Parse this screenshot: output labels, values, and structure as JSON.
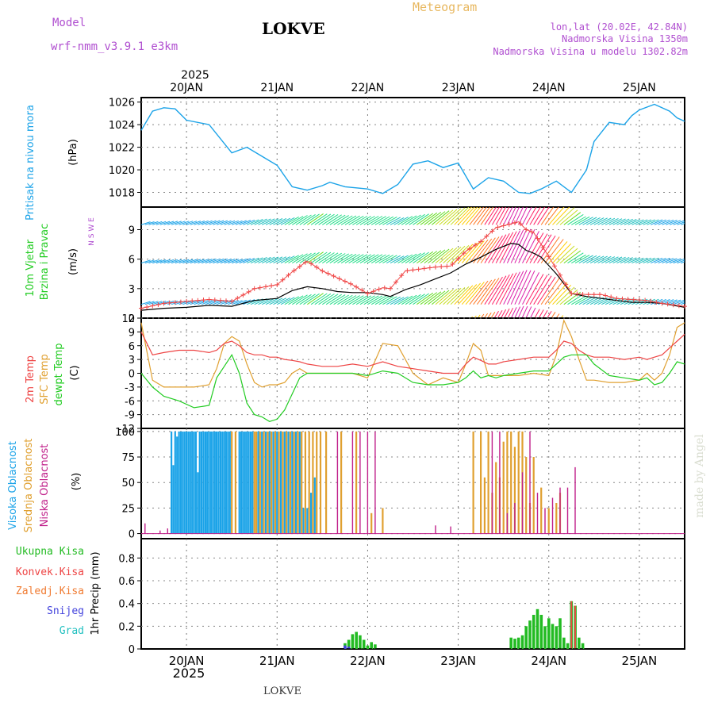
{
  "header": {
    "model_label": "Model",
    "model_name": "wrf-nmm_v3.9.1 e3km",
    "station": "LOKVE",
    "title": "Meteogram",
    "coords": "lon,lat (20.02E, 42.84N)",
    "altitude": "Nadmorska Visina 1350m",
    "model_altitude": "Nadmorska Visina u modelu 1302.82m",
    "footer_station": "LOKVE",
    "credit": "made by Angel"
  },
  "colors": {
    "pressure": "#1ba3e8",
    "wind_label": "#22cc22",
    "gust": "#f04848",
    "temp2m": "#ee4444",
    "sfc_temp": "#e0a030",
    "dewpt": "#22cc22",
    "cloud_high": "#1ba3e8",
    "cloud_mid": "#e0a030",
    "cloud_low": "#c0208a",
    "precip_total": "#22bb22",
    "precip_conv": "#ee4444",
    "precip_frozen": "#f07a30",
    "snow": "#4444dd",
    "graupel": "#22c0c0",
    "header_purple": "#b04fd0",
    "meteogram_orange": "#e8b860"
  },
  "time_axis": {
    "year": "2025",
    "days": [
      "20JAN",
      "21JAN",
      "22JAN",
      "23JAN",
      "24JAN",
      "25JAN"
    ],
    "hours_from_start": [
      0,
      144
    ],
    "note": "hour 0 = 19JAN 12h, day labels at midnight"
  },
  "chart_data": [
    {
      "type": "line",
      "title": "Pritisak na nivou mora",
      "ylabel": "(hPa)",
      "ylim": [
        1016.7,
        1026.4
      ],
      "yticks": [
        "1018",
        "1020",
        "1022",
        "1024",
        "1026"
      ],
      "x_hours": [
        0,
        3,
        6,
        9,
        12,
        18,
        24,
        28,
        32,
        36,
        40,
        44,
        48,
        50,
        54,
        60,
        64,
        68,
        72,
        76,
        80,
        84,
        88,
        92,
        96,
        100,
        103,
        106,
        110,
        114,
        118,
        120,
        124,
        128,
        130,
        132,
        136,
        140,
        142,
        144
      ],
      "series": [
        {
          "name": "MSLP",
          "values": [
            1023.5,
            1025.2,
            1025.5,
            1025.4,
            1024.4,
            1024.0,
            1021.5,
            1022.0,
            1021.2,
            1020.4,
            1018.5,
            1018.2,
            1018.6,
            1018.9,
            1018.5,
            1018.3,
            1017.9,
            1018.7,
            1020.5,
            1020.8,
            1020.2,
            1020.6,
            1018.3,
            1019.3,
            1019.0,
            1018.0,
            1017.9,
            1018.3,
            1019.0,
            1018.0,
            1020.0,
            1022.5,
            1024.2,
            1024.0,
            1024.8,
            1025.3,
            1025.8,
            1025.2,
            1024.6,
            1024.3
          ]
        }
      ]
    },
    {
      "type": "line",
      "title": "10m Vjetar Brzina i Pravac",
      "ylabel": "(m/s)",
      "ylim": [
        0,
        11.3
      ],
      "yticks": [
        "0",
        "3",
        "6",
        "9"
      ],
      "compass": "N S W E",
      "x_hours": [
        0,
        6,
        12,
        18,
        24,
        30,
        36,
        40,
        44,
        48,
        52,
        56,
        60,
        64,
        66,
        70,
        74,
        78,
        82,
        86,
        90,
        94,
        98,
        100,
        102,
        104,
        106,
        110,
        114,
        118,
        122,
        126,
        130,
        134,
        138,
        144
      ],
      "series": [
        {
          "name": "Mean wind",
          "values": [
            0.8,
            1.0,
            1.1,
            1.3,
            1.2,
            1.8,
            2.0,
            2.8,
            3.2,
            3.0,
            2.7,
            2.6,
            2.6,
            2.4,
            2.2,
            2.9,
            3.4,
            4.0,
            4.6,
            5.5,
            6.2,
            7.0,
            7.6,
            7.5,
            6.9,
            6.6,
            6.2,
            4.5,
            2.5,
            2.2,
            2.0,
            1.8,
            1.6,
            1.6,
            1.5,
            1.1
          ]
        },
        {
          "name": "Gust",
          "values": [
            1.0,
            1.5,
            1.7,
            1.9,
            1.7,
            3.0,
            3.4,
            4.7,
            5.8,
            4.8,
            4.1,
            3.4,
            2.5,
            3.1,
            3.0,
            4.8,
            5.0,
            5.2,
            5.3,
            6.8,
            7.8,
            9.2,
            9.6,
            9.8,
            9.0,
            8.7,
            7.5,
            5.0,
            2.5,
            2.4,
            2.4,
            2.0,
            1.9,
            1.8,
            1.5,
            1.2
          ]
        }
      ]
    },
    {
      "type": "line",
      "title": "2m Temp / SFC Temp / dewpt Temp",
      "ylabel": "(C)",
      "ylim": [
        -12,
        12
      ],
      "yticks": [
        "-12",
        "-9",
        "-6",
        "-3",
        "0",
        "3",
        "6",
        "9",
        "12"
      ],
      "x_hours": [
        0,
        3,
        6,
        10,
        14,
        18,
        20,
        22,
        24,
        26,
        28,
        30,
        32,
        34,
        36,
        38,
        40,
        42,
        44,
        48,
        52,
        56,
        60,
        64,
        68,
        72,
        76,
        80,
        84,
        86,
        88,
        90,
        92,
        94,
        96,
        100,
        104,
        108,
        110,
        112,
        114,
        116,
        118,
        120,
        124,
        128,
        132,
        134,
        136,
        138,
        140,
        142,
        144
      ],
      "series": [
        {
          "name": "2m Temp",
          "values": [
            9.0,
            4.0,
            4.5,
            5.0,
            5.0,
            4.5,
            5.0,
            6.5,
            7.0,
            6.0,
            4.5,
            4.0,
            4.0,
            3.5,
            3.5,
            3.0,
            2.8,
            2.5,
            2.0,
            1.5,
            1.5,
            2.0,
            1.5,
            2.5,
            1.5,
            1.0,
            0.5,
            0.0,
            0.0,
            2.0,
            3.5,
            2.8,
            2.0,
            2.0,
            2.5,
            3.0,
            3.5,
            3.5,
            5.0,
            7.0,
            6.5,
            5.0,
            4.0,
            3.5,
            3.5,
            3.0,
            3.5,
            3.0,
            3.5,
            4.0,
            5.5,
            7.0,
            8.5
          ]
        },
        {
          "name": "SFC Temp",
          "values": [
            11.0,
            -1.5,
            -3.0,
            -3.0,
            -3.0,
            -2.5,
            1.0,
            6.5,
            8.0,
            7.0,
            2.0,
            -2.0,
            -3.0,
            -2.5,
            -2.5,
            -2.0,
            0.0,
            1.0,
            0.0,
            0.0,
            0.0,
            0.0,
            -1.0,
            6.5,
            6.0,
            0.0,
            -2.5,
            -1.0,
            -2.0,
            2.0,
            6.5,
            5.0,
            -0.5,
            -0.5,
            -0.5,
            -0.5,
            0.0,
            -0.5,
            4.0,
            11.5,
            8.0,
            3.0,
            -1.5,
            -1.5,
            -2.0,
            -2.0,
            -1.5,
            0.0,
            -1.5,
            0.0,
            4.0,
            10.0,
            11.0
          ]
        },
        {
          "name": "dewpt Temp",
          "values": [
            0.0,
            -3.0,
            -5.0,
            -6.0,
            -7.5,
            -7.0,
            -1.0,
            1.5,
            4.0,
            0.0,
            -6.5,
            -9.0,
            -9.5,
            -10.5,
            -10.0,
            -8.0,
            -4.5,
            -1.0,
            0.0,
            0.0,
            0.0,
            0.0,
            -0.5,
            0.5,
            0.0,
            -2.0,
            -2.5,
            -2.5,
            -2.0,
            -1.0,
            0.5,
            -1.0,
            -0.5,
            -1.0,
            -0.5,
            0.0,
            0.5,
            0.5,
            2.0,
            3.5,
            4.0,
            4.0,
            4.0,
            2.0,
            -0.5,
            -1.0,
            -1.5,
            -1.0,
            -2.5,
            -2.0,
            0.0,
            2.5,
            2.0
          ]
        }
      ]
    },
    {
      "type": "bar",
      "title": "Visoka Oblacnost / Srednja Oblacnost / Niska Oblacnost",
      "ylabel": "(%)",
      "ylim": [
        -5,
        103
      ],
      "yticks": [
        "0",
        "25",
        "50",
        "75",
        "100"
      ],
      "series": [
        {
          "name": "Visoka Oblacnost",
          "x_hours": [
            8,
            8.5,
            9,
            9.5,
            10,
            10.5,
            11,
            11.5,
            12,
            12.5,
            13,
            13.5,
            14,
            14.5,
            15,
            15.5,
            16,
            16.5,
            17,
            17.5,
            18,
            18.5,
            19,
            19.5,
            20,
            20.5,
            21,
            21.5,
            22,
            22.5,
            23,
            23.5,
            26,
            26.5,
            27,
            27.5,
            28,
            28.5,
            29,
            29.5,
            31,
            32,
            33,
            34,
            35,
            36,
            37,
            38,
            39,
            40,
            41,
            42,
            43,
            44,
            45,
            46
          ],
          "values": [
            100,
            67,
            100,
            95,
            100,
            100,
            100,
            100,
            100,
            100,
            100,
            100,
            100,
            100,
            60,
            100,
            100,
            100,
            100,
            100,
            100,
            100,
            100,
            100,
            100,
            100,
            100,
            100,
            100,
            100,
            100,
            100,
            100,
            100,
            100,
            100,
            100,
            100,
            100,
            100,
            100,
            100,
            100,
            100,
            100,
            100,
            100,
            100,
            100,
            100,
            100,
            100,
            25,
            25,
            40,
            55
          ]
        },
        {
          "name": "Srednja Oblacnost",
          "x_hours": [
            24,
            25,
            30,
            30.5,
            31.5,
            32.5,
            33.5,
            34.5,
            35.5,
            36.5,
            37.5,
            38.5,
            39.5,
            40.5,
            41.5,
            42.5,
            43.5,
            44.5,
            45.5,
            46.5,
            47.5,
            49,
            53,
            57,
            61,
            64,
            88,
            90,
            91,
            92,
            93,
            94,
            95,
            96,
            97,
            98,
            99,
            100,
            101,
            102,
            103,
            104,
            106,
            108,
            110,
            111
          ],
          "values": [
            100,
            100,
            100,
            100,
            100,
            100,
            100,
            100,
            100,
            100,
            100,
            100,
            100,
            100,
            100,
            100,
            100,
            100,
            100,
            100,
            100,
            100,
            100,
            100,
            20,
            25,
            100,
            100,
            55,
            100,
            40,
            70,
            55,
            90,
            100,
            100,
            85,
            100,
            100,
            75,
            30,
            75,
            45,
            25,
            30,
            40
          ]
        },
        {
          "name": "Niska Oblacnost",
          "x_hours": [
            1,
            5,
            7,
            52,
            56,
            58,
            60,
            62,
            78,
            82,
            93,
            95,
            97,
            99,
            101,
            103,
            105,
            107,
            109,
            111,
            113,
            115
          ],
          "values": [
            10,
            3,
            5,
            100,
            100,
            100,
            100,
            100,
            8,
            7,
            100,
            100,
            20,
            30,
            60,
            100,
            40,
            25,
            35,
            45,
            45,
            65
          ]
        }
      ]
    },
    {
      "type": "bar",
      "title": "1hr Precip",
      "ylabel": "1hr Precip (mm)",
      "ylim": [
        0,
        0.97
      ],
      "yticks": [
        "0",
        "0.2",
        "0.4",
        "0.6",
        "0.8"
      ],
      "legend": [
        "Ukupna Kisa",
        "Konvek.Kisa",
        "Zaledj.Kisa",
        "Snijeg",
        "Grad"
      ],
      "series": [
        {
          "name": "Ukupna Kisa",
          "x_hours": [
            54,
            55,
            56,
            57,
            58,
            59,
            60,
            61,
            62,
            98,
            99,
            100,
            101,
            102,
            103,
            104,
            105,
            106,
            107,
            108,
            109,
            110,
            111,
            112,
            113,
            114,
            115,
            116,
            117
          ],
          "values": [
            0.05,
            0.08,
            0.13,
            0.15,
            0.12,
            0.08,
            0.03,
            0.06,
            0.04,
            0.1,
            0.09,
            0.1,
            0.12,
            0.2,
            0.25,
            0.3,
            0.35,
            0.3,
            0.2,
            0.27,
            0.22,
            0.2,
            0.27,
            0.1,
            0.05,
            0.42,
            0.38,
            0.1,
            0.05
          ]
        },
        {
          "name": "Konvek.Kisa",
          "x_hours": [
            114,
            115
          ],
          "values": [
            0.42,
            0.38
          ]
        },
        {
          "name": "Snijeg",
          "x_hours": [
            54,
            55
          ],
          "values": [
            0.03,
            0.02
          ]
        }
      ]
    }
  ]
}
